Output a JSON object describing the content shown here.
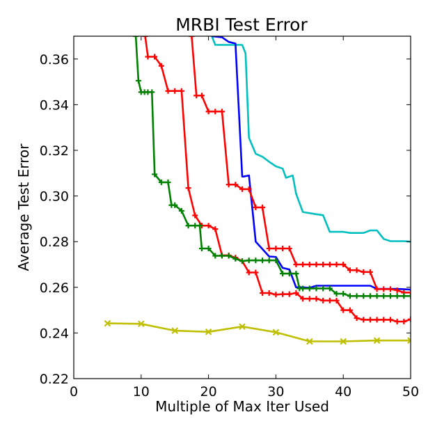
{
  "chart_data": {
    "type": "line",
    "title": "MRBI Test Error",
    "xlabel": "Multiple of Max Iter Used",
    "ylabel": "Average Test Error",
    "xlim": [
      0,
      50
    ],
    "ylim": [
      0.22,
      0.37
    ],
    "xticks": [
      0,
      10,
      20,
      30,
      40,
      50
    ],
    "yticks": [
      0.22,
      0.24,
      0.26,
      0.28,
      0.3,
      0.32,
      0.34,
      0.36
    ],
    "xtick_labels": [
      "0",
      "10",
      "20",
      "30",
      "40",
      "50"
    ],
    "ytick_labels": [
      "0.22",
      "0.24",
      "0.26",
      "0.28",
      "0.30",
      "0.32",
      "0.34",
      "0.36"
    ],
    "grid": false,
    "legend": "none",
    "series": [
      {
        "color": "#00bfbf",
        "marker": "none",
        "x": [
          20.5,
          21,
          24,
          25,
          25.5,
          26,
          27,
          28,
          29,
          30,
          31,
          31.5,
          32.5,
          33,
          34,
          36,
          37,
          38,
          39,
          40,
          41,
          42,
          43,
          44,
          45,
          46,
          47,
          48,
          49,
          50
        ],
        "y": [
          0.37,
          0.3662,
          0.3662,
          0.3662,
          0.3625,
          0.3255,
          0.3185,
          0.3172,
          0.315,
          0.313,
          0.312,
          0.308,
          0.309,
          0.301,
          0.293,
          0.292,
          0.2916,
          0.2843,
          0.2843,
          0.2843,
          0.2838,
          0.2838,
          0.2838,
          0.2849,
          0.2849,
          0.2812,
          0.2802,
          0.2802,
          0.2802,
          0.28
        ]
      },
      {
        "color": "#0000ff",
        "marker": "none",
        "x": [
          20.5,
          22,
          23,
          24,
          25,
          25.2,
          26,
          27,
          28,
          29,
          30,
          31,
          32,
          33,
          34,
          35,
          36,
          40,
          44,
          45,
          48,
          50
        ],
        "y": [
          0.37,
          0.3695,
          0.3675,
          0.3668,
          0.3085,
          0.3085,
          0.309,
          0.28,
          0.2768,
          0.2735,
          0.2733,
          0.2685,
          0.2678,
          0.26,
          0.26,
          0.2598,
          0.2607,
          0.2607,
          0.2607,
          0.2593,
          0.2593,
          0.259
        ]
      },
      {
        "color": "#ff0000",
        "marker": "plus",
        "x": [
          17.5,
          18.2,
          19,
          20,
          21,
          22,
          23,
          24,
          25,
          26,
          27,
          28,
          29,
          30,
          31,
          32,
          33,
          34,
          35,
          36,
          37,
          38,
          39,
          40,
          41,
          42,
          43,
          44,
          45,
          46,
          47,
          48,
          49,
          50
        ],
        "y": [
          0.37,
          0.344,
          0.344,
          0.337,
          0.337,
          0.337,
          0.305,
          0.305,
          0.303,
          0.303,
          0.295,
          0.295,
          0.277,
          0.277,
          0.277,
          0.277,
          0.27,
          0.27,
          0.27,
          0.27,
          0.27,
          0.27,
          0.27,
          0.27,
          0.2675,
          0.2675,
          0.2667,
          0.2667,
          0.2592,
          0.2592,
          0.2592,
          0.2587,
          0.2577,
          0.2577
        ]
      },
      {
        "color": "#ff0000",
        "marker": "plus",
        "x": [
          10.6,
          11,
          12,
          13,
          14,
          15,
          16,
          17,
          18,
          19,
          20,
          21,
          22,
          23,
          24,
          25,
          26,
          27,
          28,
          29,
          30,
          31,
          32,
          33,
          34,
          35,
          36,
          37,
          38,
          39,
          40,
          41,
          42,
          43,
          44,
          45,
          46,
          47,
          48,
          49,
          50
        ],
        "y": [
          0.37,
          0.361,
          0.361,
          0.357,
          0.346,
          0.346,
          0.346,
          0.3035,
          0.2915,
          0.287,
          0.287,
          0.2855,
          0.274,
          0.274,
          0.273,
          0.2715,
          0.2665,
          0.2665,
          0.2575,
          0.2575,
          0.2568,
          0.257,
          0.257,
          0.2575,
          0.255,
          0.255,
          0.255,
          0.2542,
          0.2542,
          0.2542,
          0.25,
          0.25,
          0.2465,
          0.2458,
          0.2458,
          0.2458,
          0.2458,
          0.2458,
          0.245,
          0.245,
          0.246
        ]
      },
      {
        "color": "#008000",
        "marker": "plus",
        "x": [
          9.2,
          9.6,
          10,
          10.5,
          11,
          11.6,
          12,
          13,
          14,
          14.5,
          15,
          16,
          17,
          18,
          18.7,
          19,
          20,
          21,
          22,
          23,
          24,
          25,
          26,
          27,
          28,
          29,
          30,
          31,
          32,
          33,
          33.5,
          34,
          35,
          36,
          37,
          38,
          39,
          40,
          41,
          42,
          43,
          44,
          45,
          46,
          47,
          48,
          49,
          50
        ],
        "y": [
          0.37,
          0.3505,
          0.3455,
          0.3455,
          0.3455,
          0.3455,
          0.3095,
          0.306,
          0.306,
          0.296,
          0.296,
          0.2935,
          0.287,
          0.287,
          0.287,
          0.277,
          0.277,
          0.2738,
          0.2738,
          0.2738,
          0.2725,
          0.2715,
          0.2718,
          0.2718,
          0.2718,
          0.2718,
          0.2718,
          0.266,
          0.266,
          0.266,
          0.2595,
          0.2595,
          0.2595,
          0.2595,
          0.2595,
          0.2595,
          0.2572,
          0.2572,
          0.2562,
          0.2562,
          0.2562,
          0.2562,
          0.2562,
          0.2562,
          0.2562,
          0.2562,
          0.2562,
          0.2562
        ]
      },
      {
        "color": "#bfbf00",
        "marker": "x",
        "x": [
          5,
          10,
          15,
          20,
          25,
          30,
          35,
          40,
          45,
          50
        ],
        "y": [
          0.2442,
          0.244,
          0.241,
          0.2405,
          0.2428,
          0.2403,
          0.2363,
          0.2363,
          0.2367,
          0.2367
        ]
      }
    ]
  }
}
